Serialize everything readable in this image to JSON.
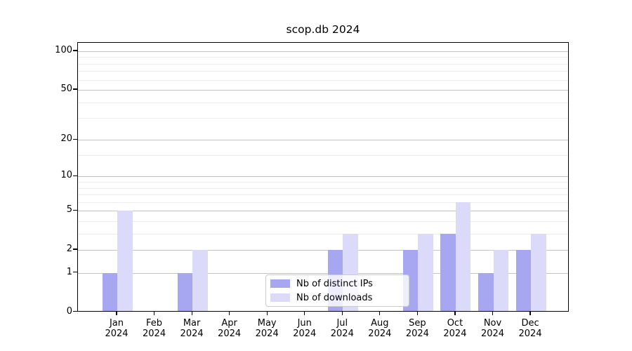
{
  "chart_data": {
    "type": "bar",
    "title": "scop.db 2024",
    "categories": [
      {
        "month": "Jan",
        "year": "2024"
      },
      {
        "month": "Feb",
        "year": "2024"
      },
      {
        "month": "Mar",
        "year": "2024"
      },
      {
        "month": "Apr",
        "year": "2024"
      },
      {
        "month": "May",
        "year": "2024"
      },
      {
        "month": "Jun",
        "year": "2024"
      },
      {
        "month": "Jul",
        "year": "2024"
      },
      {
        "month": "Aug",
        "year": "2024"
      },
      {
        "month": "Sep",
        "year": "2024"
      },
      {
        "month": "Oct",
        "year": "2024"
      },
      {
        "month": "Nov",
        "year": "2024"
      },
      {
        "month": "Dec",
        "year": "2024"
      }
    ],
    "series": [
      {
        "name": "Nb of distinct IPs",
        "color": "#a6a6f1",
        "values": [
          1,
          0,
          1,
          0,
          0,
          0,
          2,
          0,
          2,
          3,
          1,
          2
        ]
      },
      {
        "name": "Nb of downloads",
        "color": "#dbdbf9",
        "values": [
          5,
          0,
          2,
          0,
          0,
          0,
          3,
          0,
          3,
          6,
          2,
          3
        ]
      }
    ],
    "y_axis": {
      "scale": "log(1+v)",
      "ticks": [
        0,
        1,
        2,
        5,
        10,
        20,
        50,
        100
      ],
      "minor_gridlines": [
        3,
        4,
        6,
        7,
        8,
        9,
        15,
        30,
        40,
        60,
        70,
        80,
        90
      ],
      "range": [
        0,
        117
      ]
    },
    "legend": {
      "position": "lower center"
    },
    "grid": true,
    "colors": {
      "major_grid": "#c4c4c4",
      "minor_grid": "#ececec",
      "spine": "#000000",
      "text": "#000000"
    }
  }
}
